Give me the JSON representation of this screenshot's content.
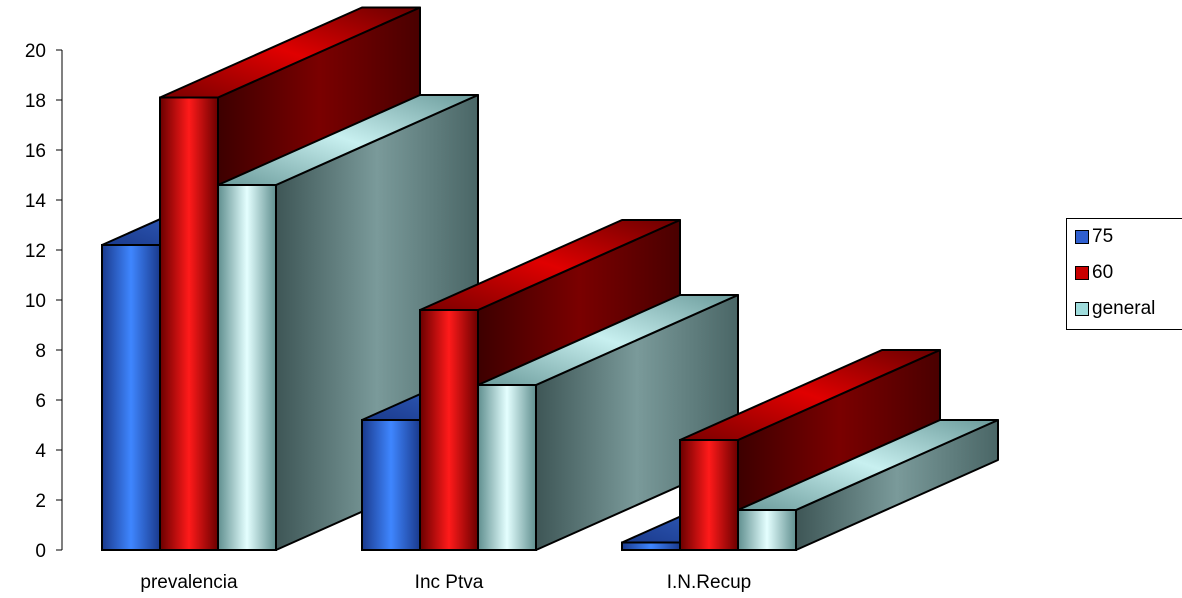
{
  "chart_data": {
    "type": "bar",
    "subtype": "3d-clustered",
    "categories": [
      "prevalencia",
      "Inc Ptva",
      "I.N.Recup"
    ],
    "series": [
      {
        "name": "75",
        "values": [
          12.2,
          5.2,
          0.3
        ],
        "color": "#2f5fd0"
      },
      {
        "name": "60",
        "values": [
          18.1,
          9.6,
          4.4
        ],
        "color": "#c80000"
      },
      {
        "name": "general",
        "values": [
          14.6,
          6.6,
          1.6
        ],
        "color": "#9fdcdc"
      }
    ],
    "y_ticks": [
      "0",
      "2",
      "4",
      "6",
      "8",
      "10",
      "12",
      "14",
      "16",
      "18",
      "20"
    ],
    "ylim": [
      0,
      20
    ],
    "title": "",
    "xlabel": "",
    "ylabel": "",
    "grid": false,
    "legend_position": "right"
  }
}
